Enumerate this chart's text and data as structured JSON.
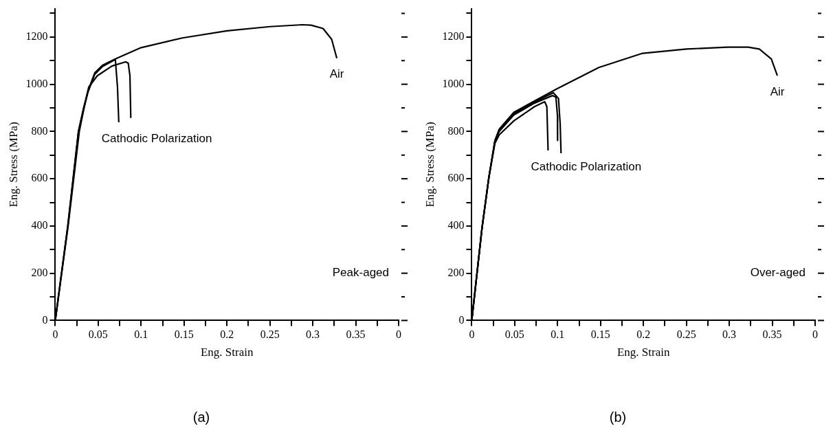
{
  "chart_data": [
    {
      "type": "line",
      "title": "(a)",
      "xlabel": "Eng. Strain",
      "ylabel": "Eng. Stress (MPa)",
      "xlim": [
        0,
        0.4
      ],
      "ylim": [
        0,
        1320
      ],
      "xticks": [
        0,
        {
          "value": 0.025,
          "label": null
        },
        0.05,
        {
          "value": 0.075,
          "label": null
        },
        0.1,
        {
          "value": 0.125,
          "label": null
        },
        0.15,
        {
          "value": 0.175,
          "label": null
        },
        0.2,
        {
          "value": 0.225,
          "label": null
        },
        0.25,
        {
          "value": 0.275,
          "label": null
        },
        0.3,
        {
          "value": 0.325,
          "label": null
        },
        0.35,
        {
          "value": 0.375,
          "label": null
        },
        {
          "value": 0.4,
          "label": "0"
        }
      ],
      "yticks": [
        0,
        {
          "value": 100,
          "label": null
        },
        200,
        {
          "value": 300,
          "label": null
        },
        400,
        {
          "value": 500,
          "label": null
        },
        600,
        {
          "value": 700,
          "label": null
        },
        800,
        {
          "value": 900,
          "label": null
        },
        1000,
        {
          "value": 1100,
          "label": null
        },
        1200,
        {
          "value": 1300,
          "label": null
        }
      ],
      "grid": false,
      "legend": false,
      "marker": "none",
      "line_style": "solid",
      "series": [
        {
          "color": "#000000",
          "x": [
            0,
            0.0146,
            0.027,
            0.033,
            0.038,
            0.046,
            0.055,
            0.07,
            0.1,
            0.148,
            0.2,
            0.25,
            0.288,
            0.298,
            0.312,
            0.322,
            0.328
          ],
          "values": [
            0,
            400,
            800,
            900,
            970,
            1048,
            1080,
            1107,
            1155,
            1196,
            1226,
            1244,
            1252,
            1250,
            1236,
            1190,
            1110
          ]
        },
        {
          "color": "#000000",
          "x": [
            0,
            0.0146,
            0.027,
            0.033,
            0.038,
            0.046,
            0.055,
            0.07,
            0.0725,
            0.074
          ],
          "values": [
            0,
            400,
            800,
            895,
            965,
            1042,
            1075,
            1105,
            988,
            839
          ]
        },
        {
          "color": "#000000",
          "x": [
            0,
            0.015,
            0.028,
            0.033,
            0.039,
            0.049,
            0.066,
            0.082,
            0.085,
            0.087,
            0.088
          ],
          "values": [
            0,
            400,
            800,
            890,
            988,
            1036,
            1077,
            1095,
            1089,
            1036,
            857
          ]
        }
      ],
      "annotations": [
        "Air",
        "Cathodic Polarization",
        "Peak-aged"
      ]
    },
    {
      "type": "line",
      "title": "(b)",
      "xlabel": "Eng. Strain",
      "ylabel": "Eng. Stress (MPa)",
      "xlim": [
        0,
        0.4
      ],
      "ylim": [
        0,
        1320
      ],
      "xticks": [
        0,
        {
          "value": 0.025,
          "label": null
        },
        0.05,
        {
          "value": 0.075,
          "label": null
        },
        0.1,
        {
          "value": 0.125,
          "label": null
        },
        0.15,
        {
          "value": 0.175,
          "label": null
        },
        0.2,
        {
          "value": 0.225,
          "label": null
        },
        0.25,
        {
          "value": 0.275,
          "label": null
        },
        0.3,
        {
          "value": 0.325,
          "label": null
        },
        0.35,
        {
          "value": 0.375,
          "label": null
        },
        {
          "value": 0.4,
          "label": "0"
        }
      ],
      "yticks": [
        0,
        {
          "value": 100,
          "label": null
        },
        200,
        {
          "value": 300,
          "label": null
        },
        400,
        {
          "value": 500,
          "label": null
        },
        600,
        {
          "value": 700,
          "label": null
        },
        800,
        {
          "value": 900,
          "label": null
        },
        1000,
        {
          "value": 1100,
          "label": null
        },
        1200,
        {
          "value": 1300,
          "label": null
        }
      ],
      "grid": false,
      "legend": false,
      "marker": "none",
      "line_style": "solid",
      "series": [
        {
          "color": "#000000",
          "x": [
            0,
            0.012,
            0.02,
            0.027,
            0.032,
            0.049,
            0.073,
            0.1,
            0.148,
            0.199,
            0.25,
            0.298,
            0.322,
            0.335,
            0.349,
            0.356
          ],
          "values": [
            0,
            393,
            607,
            762,
            810,
            881,
            929,
            982,
            1071,
            1131,
            1149,
            1157,
            1157,
            1149,
            1107,
            1036
          ]
        },
        {
          "color": "#000000",
          "x": [
            0,
            0.012,
            0.02,
            0.027,
            0.032,
            0.049,
            0.073,
            0.085,
            0.0875,
            0.0889
          ],
          "values": [
            0,
            393,
            607,
            750,
            786,
            845,
            905,
            926,
            905,
            720
          ]
        },
        {
          "color": "#000000",
          "x": [
            0,
            0.012,
            0.02,
            0.027,
            0.032,
            0.049,
            0.073,
            0.094,
            0.098,
            0.0998,
            0.1
          ],
          "values": [
            0,
            393,
            607,
            758,
            800,
            870,
            920,
            952,
            946,
            869,
            762
          ]
        },
        {
          "color": "#000000",
          "x": [
            0,
            0.012,
            0.02,
            0.027,
            0.032,
            0.049,
            0.073,
            0.095,
            0.101,
            0.103,
            0.104
          ],
          "values": [
            0,
            393,
            607,
            760,
            805,
            875,
            925,
            964,
            940,
            833,
            708
          ]
        }
      ],
      "annotations": [
        "Air",
        "Cathodic Polarization",
        "Over-aged"
      ]
    }
  ]
}
